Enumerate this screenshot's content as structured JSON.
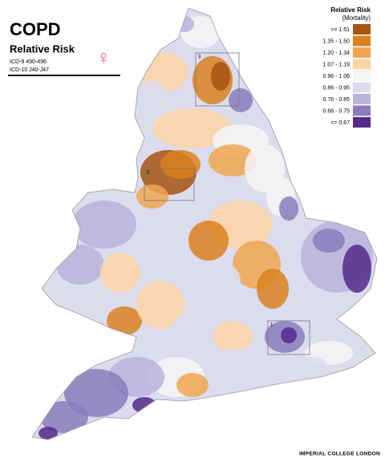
{
  "header": {
    "title": "COPD",
    "subtitle": "Relative Risk",
    "codes": [
      "ICD-9    490-496",
      "ICD-10  J40-J47"
    ],
    "symbol": "♀"
  },
  "legend": {
    "title": "Relative Risk",
    "subtitle": "(Mortality)",
    "items": [
      {
        "label": ">= 1.51",
        "color": "#a65410"
      },
      {
        "label": "1.35 - 1.50",
        "color": "#d9811f"
      },
      {
        "label": "1.20 - 1.34",
        "color": "#f0a650"
      },
      {
        "label": "1.07 - 1.19",
        "color": "#fbd5a6"
      },
      {
        "label": "0.96 - 1.06",
        "color": "#f6f5f4"
      },
      {
        "label": "0.86 - 0.95",
        "color": "#dcdcef"
      },
      {
        "label": "0.76 - 0.85",
        "color": "#b9b3dc"
      },
      {
        "label": "0.68 - 0.75",
        "color": "#8a7cbc"
      },
      {
        "label": "<= 0.67",
        "color": "#55298c"
      }
    ]
  },
  "map": {
    "inset_labels": [
      "3",
      "2",
      "1"
    ]
  },
  "footer": {
    "credit": "IMPERIAL COLLEGE LONDON"
  }
}
